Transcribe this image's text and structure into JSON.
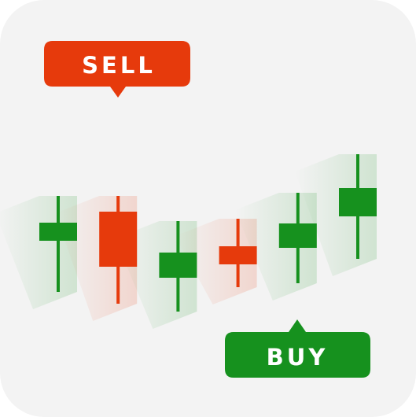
{
  "chart_data": {
    "type": "candlestick",
    "title": "",
    "xlabel": "",
    "ylabel": "",
    "grid": false,
    "ylim": [
      0,
      100
    ],
    "colors": {
      "up": "#16911e",
      "down": "#e63a0c",
      "background": "#f3f3f3"
    },
    "candles": [
      {
        "direction": "up",
        "open": 33.0,
        "close": 44.5,
        "high": 61.5,
        "low": 0.5
      },
      {
        "direction": "down",
        "open": 51.5,
        "close": 16.5,
        "high": 61.5,
        "low": -7.0
      },
      {
        "direction": "up",
        "open": 9.5,
        "close": 25.5,
        "high": 45.5,
        "low": -12.0
      },
      {
        "direction": "down",
        "open": 29.5,
        "close": 18.0,
        "high": 47.0,
        "low": 3.5
      },
      {
        "direction": "up",
        "open": 28.5,
        "close": 44.0,
        "high": 63.5,
        "low": 6.0
      },
      {
        "direction": "up",
        "open": 48.5,
        "close": 66.5,
        "high": 88.0,
        "low": 21.5
      }
    ],
    "annotations": [
      {
        "text": "SELL",
        "candle_index": 1,
        "color": "#e63a0c",
        "pointer": "down"
      },
      {
        "text": "BUY",
        "candle_index": 4,
        "color": "#16911e",
        "pointer": "up"
      }
    ]
  }
}
